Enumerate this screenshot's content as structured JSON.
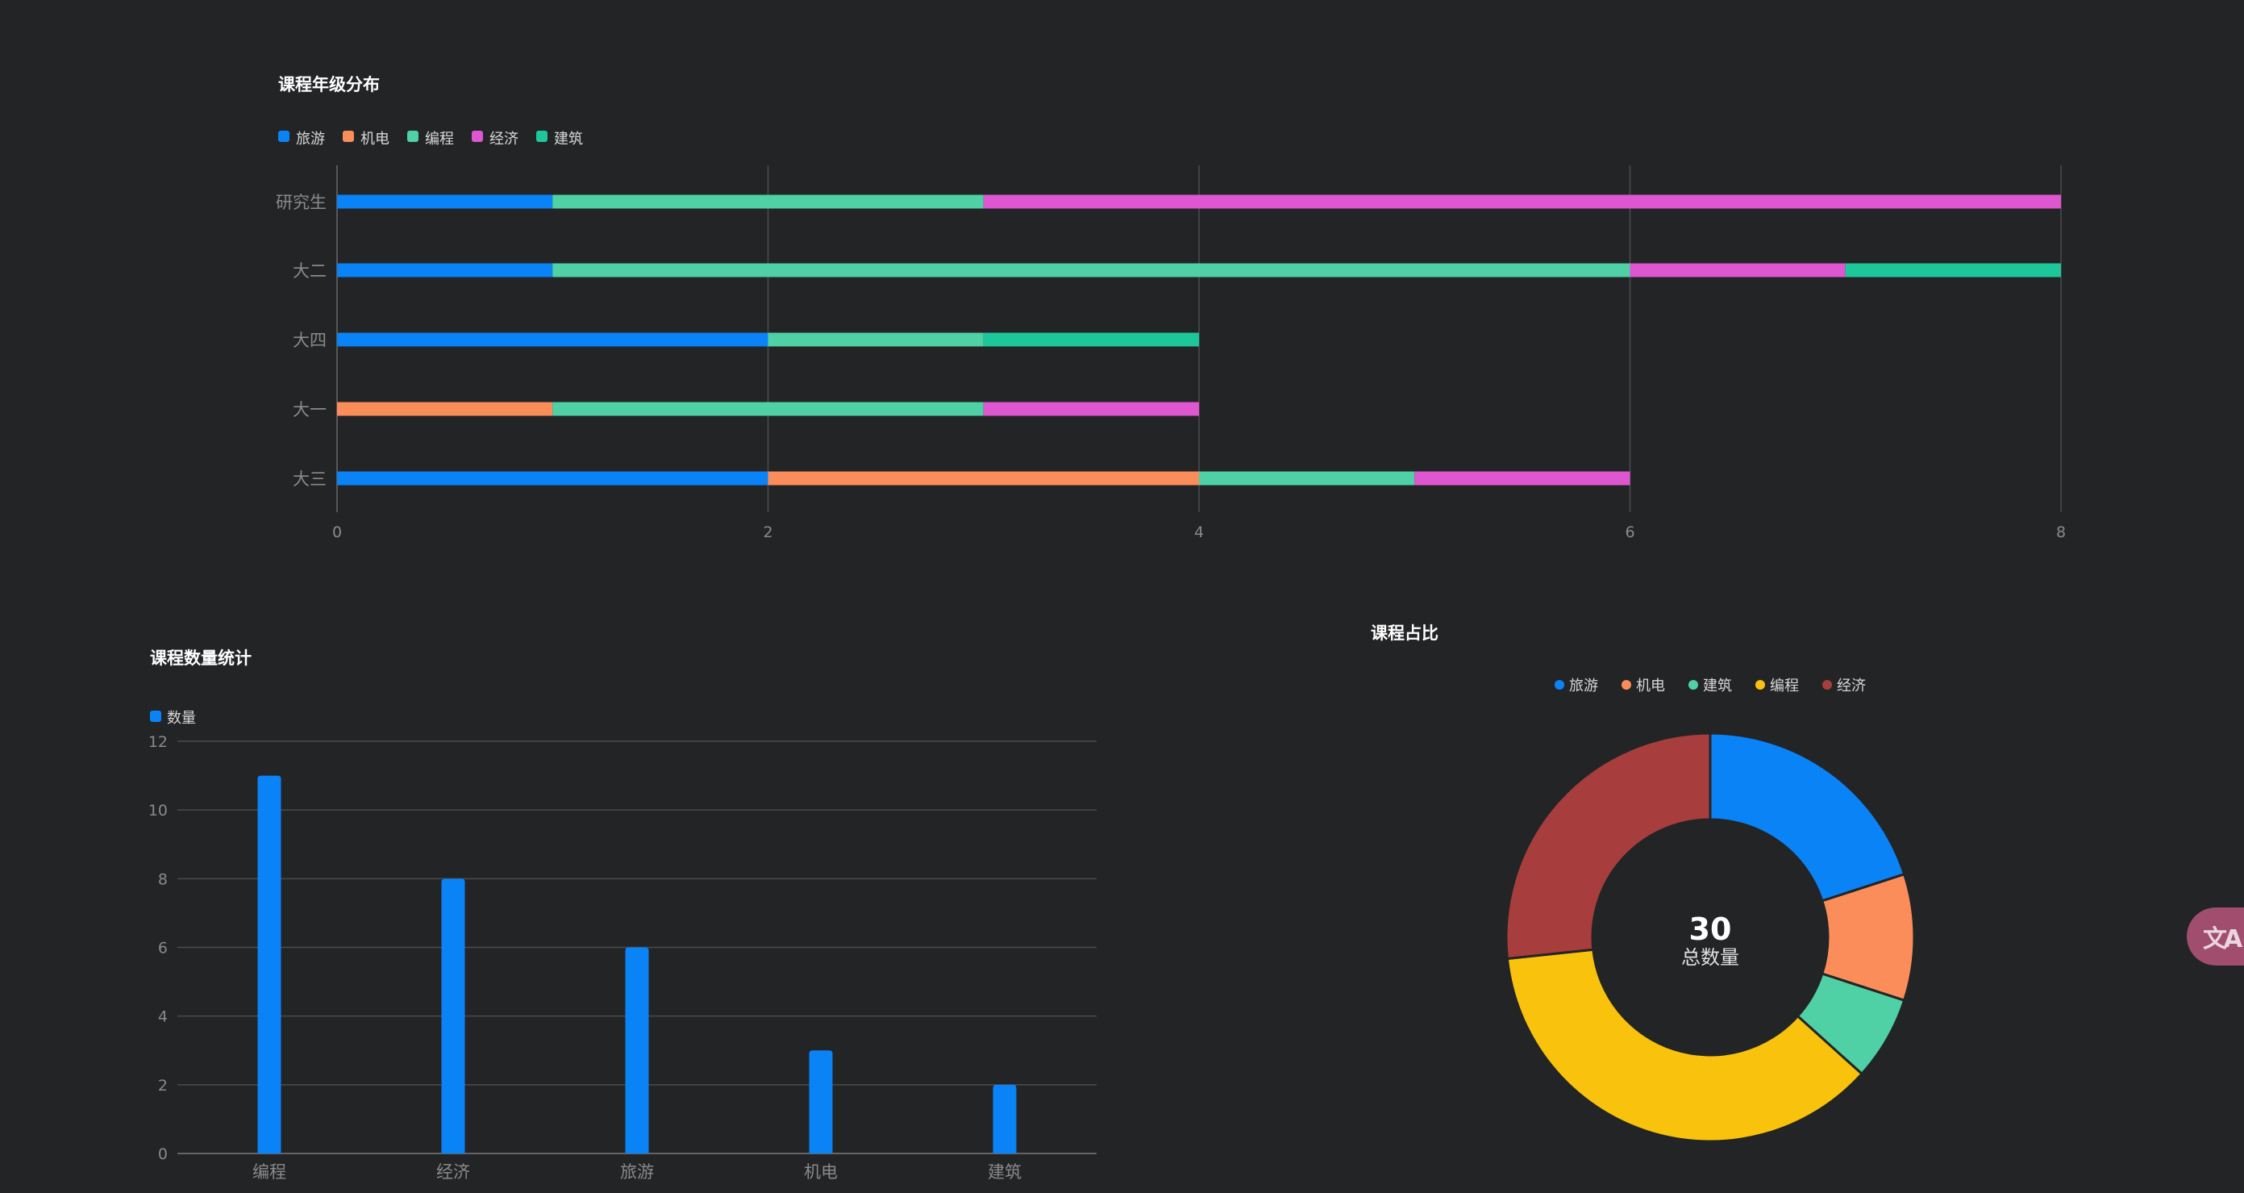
{
  "translate_widget": {
    "icon": "translate-icon",
    "label": "文A"
  },
  "chart_data": [
    {
      "id": "grade",
      "type": "bar",
      "orientation": "horizontal",
      "stacked": true,
      "title": "课程年级分布",
      "categories": [
        "研究生",
        "大二",
        "大四",
        "大一",
        "大三"
      ],
      "series": [
        {
          "name": "旅游",
          "color": "#0a83f7",
          "values": [
            1,
            1,
            2,
            0,
            2
          ]
        },
        {
          "name": "机电",
          "color": "#fb8d5a",
          "values": [
            0,
            0,
            0,
            1,
            2
          ]
        },
        {
          "name": "编程",
          "color": "#4fd1a5",
          "values": [
            2,
            5,
            1,
            2,
            1
          ]
        },
        {
          "name": "经济",
          "color": "#de57d0",
          "values": [
            5,
            1,
            0,
            1,
            1
          ]
        },
        {
          "name": "建筑",
          "color": "#1ec79a",
          "values": [
            0,
            1,
            1,
            0,
            0
          ]
        }
      ],
      "xlim": [
        0,
        8
      ],
      "xticks": [
        "0",
        "2",
        "4",
        "6",
        "8"
      ],
      "grid": true,
      "legend": "top-left"
    },
    {
      "id": "count",
      "type": "bar",
      "title": "课程数量统计",
      "categories": [
        "编程",
        "经济",
        "旅游",
        "机电",
        "建筑"
      ],
      "series": [
        {
          "name": "数量",
          "color": "#0a83f7",
          "values": [
            11,
            8,
            6,
            3,
            2
          ]
        }
      ],
      "ylim": [
        0,
        12
      ],
      "yticks": [
        "0",
        "2",
        "4",
        "6",
        "8",
        "10",
        "12"
      ],
      "grid": true,
      "legend": "top-left"
    },
    {
      "id": "share",
      "type": "pie",
      "donut": true,
      "title": "课程占比",
      "slices": [
        {
          "label": "旅游",
          "value": 6,
          "color": "#0a83f7"
        },
        {
          "label": "机电",
          "value": 3,
          "color": "#fb8d5a"
        },
        {
          "label": "建筑",
          "value": 2,
          "color": "#4fd1a5"
        },
        {
          "label": "编程",
          "value": 11,
          "color": "#f9c20c"
        },
        {
          "label": "经济",
          "value": 8,
          "color": "#a83d3d"
        }
      ],
      "center_value": "30",
      "center_label": "总数量",
      "legend": "top-center"
    }
  ]
}
